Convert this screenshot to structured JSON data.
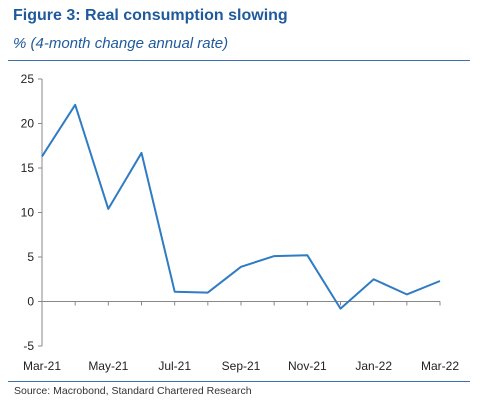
{
  "header": {
    "title": "Figure 3: Real consumption slowing",
    "subtitle": "% (4-month change annual rate)"
  },
  "footer": {
    "source": "Source: Macrobond, Standard Chartered Research"
  },
  "colors": {
    "line": "#2f7bc4",
    "accent": "#1f5a9c"
  },
  "chart_data": {
    "type": "line",
    "title": "Figure 3: Real consumption slowing",
    "subtitle": "% (4-month change annual rate)",
    "xlabel": "",
    "ylabel": "",
    "ylim": [
      -5,
      25
    ],
    "yticks": [
      25,
      20,
      15,
      10,
      5,
      0,
      -5
    ],
    "grid": false,
    "x": [
      "Mar-21",
      "Apr-21",
      "May-21",
      "Jun-21",
      "Jul-21",
      "Aug-21",
      "Sep-21",
      "Oct-21",
      "Nov-21",
      "Dec-21",
      "Jan-22",
      "Feb-22",
      "Mar-22"
    ],
    "xtick_labels": [
      "Mar-21",
      "May-21",
      "Jul-21",
      "Sep-21",
      "Nov-21",
      "Jan-22",
      "Mar-22"
    ],
    "series": [
      {
        "values": [
          16.3,
          22.1,
          10.4,
          16.7,
          1.1,
          1.0,
          3.9,
          5.1,
          5.2,
          -0.8,
          2.5,
          0.8,
          2.3
        ]
      }
    ]
  }
}
